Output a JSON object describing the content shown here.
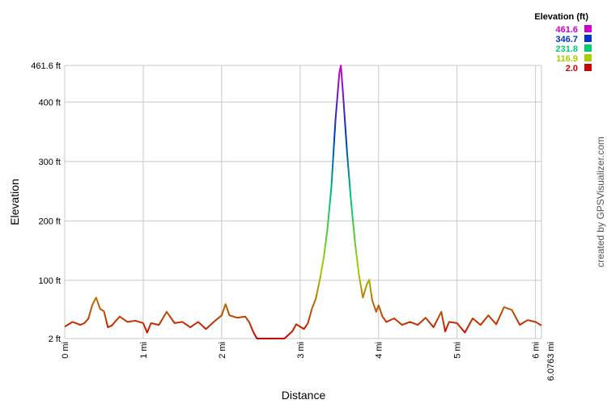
{
  "chart_data": {
    "type": "line",
    "x_label": "Distance",
    "y_label": "Elevation",
    "credit": "created by GPSVisualizer.com",
    "legend_title": "Elevation (ft)",
    "color_scale": [
      {
        "value": 461.6,
        "color": "#cc00cc"
      },
      {
        "value": 346.7,
        "color": "#0033cc"
      },
      {
        "value": 231.8,
        "color": "#00cc77"
      },
      {
        "value": 116.9,
        "color": "#aacc00"
      },
      {
        "value": 2,
        "label": "2.0",
        "color": "#cc0000"
      }
    ],
    "grid": true,
    "xlim": [
      0,
      6.0763
    ],
    "ylim": [
      2,
      461.6
    ],
    "xticks": [
      {
        "value": 0,
        "label": "0 mi"
      },
      {
        "value": 1,
        "label": "1 mi"
      },
      {
        "value": 2,
        "label": "2 mi"
      },
      {
        "value": 3,
        "label": "3 mi"
      },
      {
        "value": 4,
        "label": "4 mi"
      },
      {
        "value": 5,
        "label": "5 mi"
      },
      {
        "value": 6,
        "label": "6 mi"
      },
      {
        "value": 6.0763,
        "label": "6.0763 mi"
      }
    ],
    "yticks": [
      {
        "value": 2,
        "label": "2 ft"
      },
      {
        "value": 100,
        "label": "100 ft"
      },
      {
        "value": 200,
        "label": "200 ft"
      },
      {
        "value": 300,
        "label": "300 ft"
      },
      {
        "value": 400,
        "label": "400 ft"
      },
      {
        "value": 461.6,
        "label": "461.6 ft"
      }
    ],
    "x": [
      0,
      0.1,
      0.2,
      0.25,
      0.3,
      0.35,
      0.4,
      0.45,
      0.5,
      0.55,
      0.6,
      0.7,
      0.8,
      0.9,
      1.0,
      1.05,
      1.1,
      1.2,
      1.3,
      1.4,
      1.5,
      1.6,
      1.7,
      1.8,
      1.9,
      2.0,
      2.05,
      2.1,
      2.2,
      2.3,
      2.35,
      2.4,
      2.45,
      2.6,
      2.8,
      2.9,
      2.95,
      3.0,
      3.05,
      3.1,
      3.15,
      3.2,
      3.25,
      3.3,
      3.35,
      3.4,
      3.45,
      3.5,
      3.52,
      3.55,
      3.6,
      3.65,
      3.7,
      3.75,
      3.8,
      3.85,
      3.88,
      3.92,
      3.97,
      4.0,
      4.05,
      4.1,
      4.2,
      4.3,
      4.4,
      4.5,
      4.6,
      4.7,
      4.8,
      4.85,
      4.9,
      5.0,
      5.1,
      5.2,
      5.3,
      5.4,
      5.5,
      5.6,
      5.7,
      5.8,
      5.9,
      6.0,
      6.0763
    ],
    "values": [
      22,
      30,
      25,
      28,
      35,
      58,
      71,
      52,
      48,
      21,
      24,
      39,
      30,
      32,
      28,
      12,
      28,
      25,
      47,
      28,
      30,
      21,
      30,
      18,
      30,
      41,
      60,
      41,
      37,
      39,
      30,
      14,
      2,
      2,
      2,
      14,
      26,
      22,
      18,
      28,
      52,
      69,
      100,
      137,
      188,
      259,
      368,
      449,
      461.6,
      409,
      313,
      232,
      164,
      109,
      71,
      93,
      101,
      66,
      47,
      58,
      39,
      30,
      36,
      25,
      30,
      25,
      37,
      21,
      47,
      14,
      30,
      28,
      12,
      36,
      25,
      41,
      26,
      55,
      50,
      25,
      33,
      30,
      24
    ]
  }
}
